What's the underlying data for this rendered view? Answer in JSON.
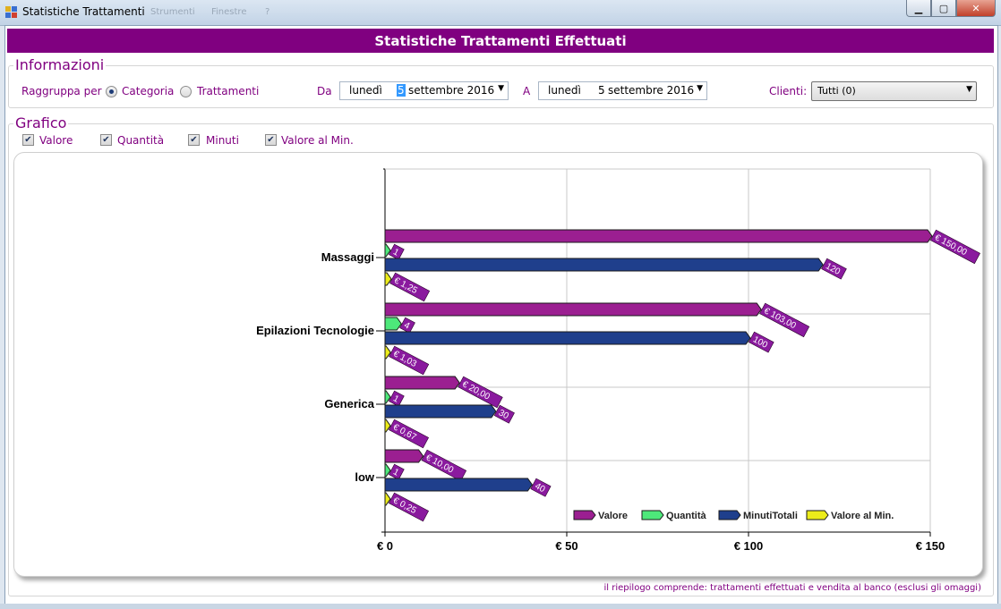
{
  "window": {
    "title": "Statistiche Trattamenti",
    "ghost_text_1": "Strumenti",
    "ghost_text_2": "Finestre",
    "ghost_text_3": "?"
  },
  "header": {
    "title": "Statistiche Trattamenti Effettuati"
  },
  "info": {
    "group_title": "Informazioni",
    "group_by_label": "Raggruppa per",
    "option_category": "Categoria",
    "option_treatments": "Trattamenti",
    "selected_option": "Categoria",
    "from_label": "Da",
    "from_day": "lunedì",
    "from_num": "5",
    "from_rest": "settembre 2016",
    "to_label": "A",
    "to_day": "lunedì",
    "to_num": "5",
    "to_rest": "settembre 2016",
    "clients_label": "Clienti:",
    "clients_value": "Tutti (0)"
  },
  "grafico": {
    "group_title": "Grafico",
    "checks": [
      {
        "label": "Valore",
        "checked": true
      },
      {
        "label": "Quantità",
        "checked": true
      },
      {
        "label": "Minuti",
        "checked": true
      },
      {
        "label": "Valore al Min.",
        "checked": true
      }
    ]
  },
  "chart_data": {
    "type": "bar",
    "orientation": "horizontal",
    "categories": [
      "Massaggi",
      "Epilazioni Tecnologie",
      "Generica",
      "low"
    ],
    "series": [
      {
        "name": "Valore",
        "values": [
          150,
          103,
          20,
          10
        ],
        "labels": [
          "€ 150,00",
          "€ 103,00",
          "€ 20,00",
          "€ 10,00"
        ],
        "color": "#9b1f91"
      },
      {
        "name": "Quantità",
        "values": [
          1,
          4,
          1,
          1
        ],
        "labels": [
          "1",
          "4",
          "1",
          "1"
        ],
        "color": "#4de87a"
      },
      {
        "name": "MinutiTotali",
        "values": [
          120,
          100,
          30,
          40
        ],
        "labels": [
          "120",
          "100",
          "30",
          "40"
        ],
        "color": "#1f3f8c"
      },
      {
        "name": "Valore al Min.",
        "values": [
          1.25,
          1.03,
          0.67,
          0.25
        ],
        "labels": [
          "€ 1,25",
          "€ 1,03",
          "€ 0,67",
          "€ 0,25"
        ],
        "color": "#ecec1a"
      }
    ],
    "xlim": [
      0,
      150
    ],
    "x_ticks": [
      0,
      50,
      100,
      150
    ],
    "x_tick_labels": [
      "€ 0",
      "€ 50",
      "€ 100",
      "€ 150"
    ],
    "label_color": "#8a1a9e",
    "grid": true,
    "legend_position": "bottom-right"
  },
  "footer": {
    "note": "il riepilogo comprende: trattamenti effettuati e vendita al banco (esclusi gli omaggi)"
  }
}
